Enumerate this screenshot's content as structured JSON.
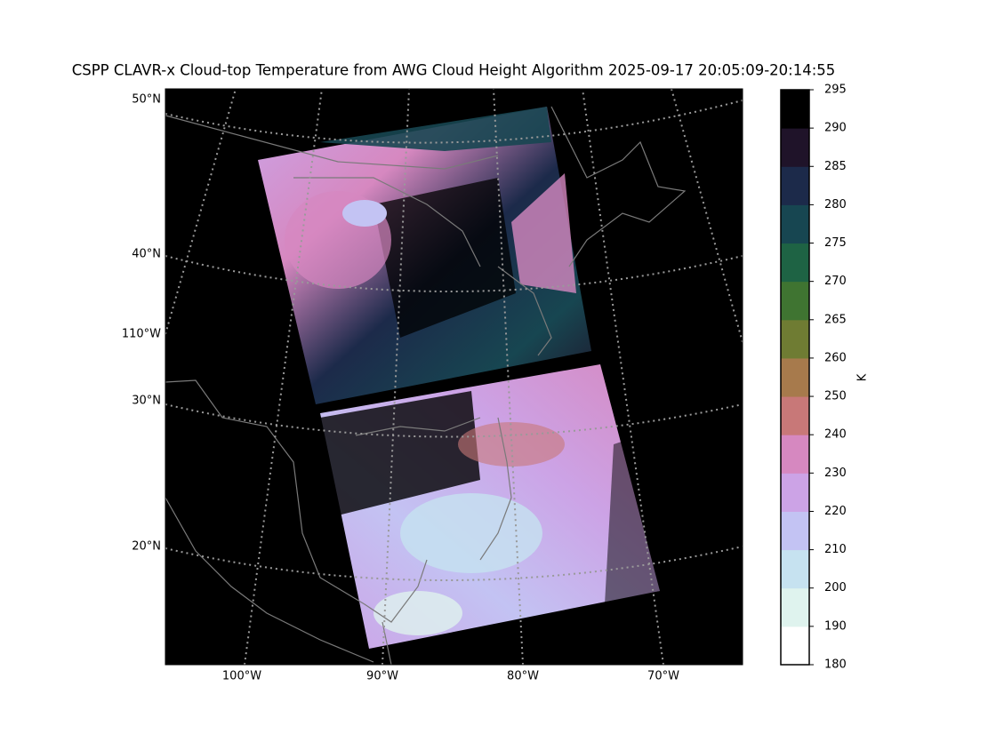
{
  "title": "CSPP CLAVR-x Cloud-top Temperature from AWG Cloud Height Algorithm 2025-09-17 20:05:09-20:14:55",
  "map": {
    "lat_labels": [
      "50°N",
      "40°N",
      "30°N",
      "20°N"
    ],
    "lon_label_left": "110°W",
    "lon_labels_bottom": [
      "100°W",
      "90°W",
      "80°W",
      "70°W"
    ]
  },
  "colorbar": {
    "label": "K",
    "ticks": [
      180,
      190,
      200,
      210,
      220,
      230,
      240,
      250,
      260,
      265,
      270,
      275,
      280,
      285,
      290,
      295
    ],
    "colors": [
      "#ffffff",
      "#dff3ee",
      "#c6e2f0",
      "#c3c3f3",
      "#cca3e6",
      "#d688c0",
      "#c87878",
      "#a77a4c",
      "#6f7c33",
      "#3f7431",
      "#1e6344",
      "#174651",
      "#1c2a4a",
      "#1f1329",
      "#000000"
    ]
  }
}
